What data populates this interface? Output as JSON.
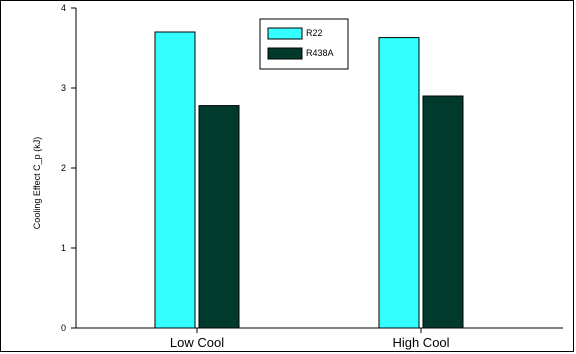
{
  "chart_data": {
    "type": "bar",
    "title": "",
    "xlabel": "",
    "ylabel": "Cooling Effect C_p (kJ)",
    "ylim": [
      0,
      4
    ],
    "yticks": [
      0,
      1,
      2,
      3,
      4
    ],
    "grid": false,
    "legend_position": "top-center",
    "categories": [
      "Low Cool",
      "High Cool"
    ],
    "series": [
      {
        "name": "R22",
        "color": "#33ffff",
        "values": [
          3.7,
          3.63
        ]
      },
      {
        "name": "R438A",
        "color": "#003a2c",
        "values": [
          2.78,
          2.9
        ]
      }
    ]
  }
}
